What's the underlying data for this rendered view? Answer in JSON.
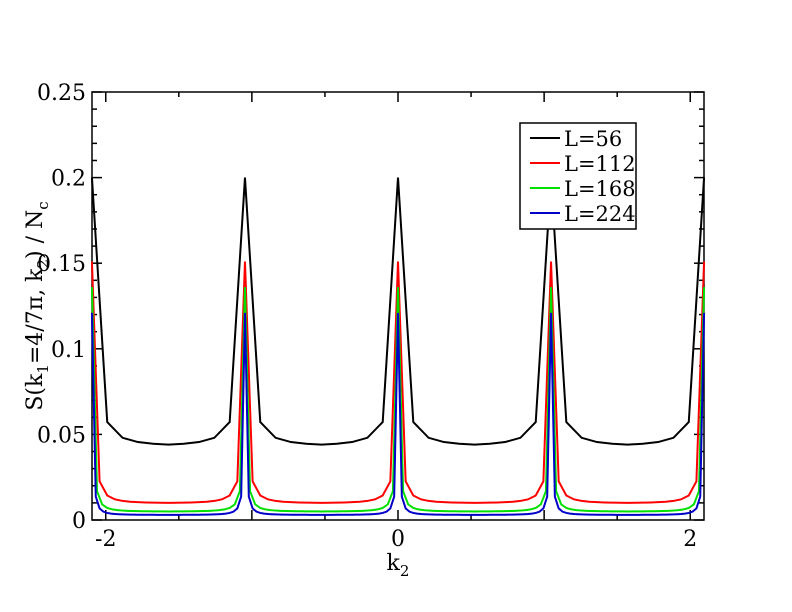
{
  "chart_data": {
    "type": "line",
    "title": "",
    "xlabel": {
      "main": "k",
      "sub": "2"
    },
    "ylabel": {
      "parts": [
        {
          "t": "S(k",
          "sub": false
        },
        {
          "t": "1",
          "sub": true
        },
        {
          "t": "=4/7π, k",
          "sub": false
        },
        {
          "t": "2",
          "sub": true
        },
        {
          "t": ") / N",
          "sub": false
        },
        {
          "t": "c",
          "sub": true
        }
      ]
    },
    "xlim": [
      -2.094,
      2.094
    ],
    "ylim": [
      0,
      0.25
    ],
    "xticks": [
      {
        "v": -2,
        "label": "-2"
      },
      {
        "v": 0,
        "label": "0"
      },
      {
        "v": 2,
        "label": "2"
      }
    ],
    "yticks": [
      {
        "v": 0,
        "label": "0"
      },
      {
        "v": 0.05,
        "label": "0.05"
      },
      {
        "v": 0.1,
        "label": "0.1"
      },
      {
        "v": 0.15,
        "label": "0.15"
      },
      {
        "v": 0.2,
        "label": "0.2"
      },
      {
        "v": 0.25,
        "label": "0.25"
      }
    ],
    "period": 1.0472,
    "grid": false,
    "legend_position": "top-right",
    "series": [
      {
        "name": "L=56",
        "color": "#000000",
        "peak": 0.2,
        "min": 0.044,
        "points": 10
      },
      {
        "name": "L=112",
        "color": "#ff0000",
        "peak": 0.151,
        "min": 0.01,
        "points": 20
      },
      {
        "name": "L=168",
        "color": "#00e000",
        "peak": 0.136,
        "min": 0.005,
        "points": 30
      },
      {
        "name": "L=224",
        "color": "#0000c8",
        "peak": 0.121,
        "min": 0.003,
        "points": 40
      }
    ]
  }
}
